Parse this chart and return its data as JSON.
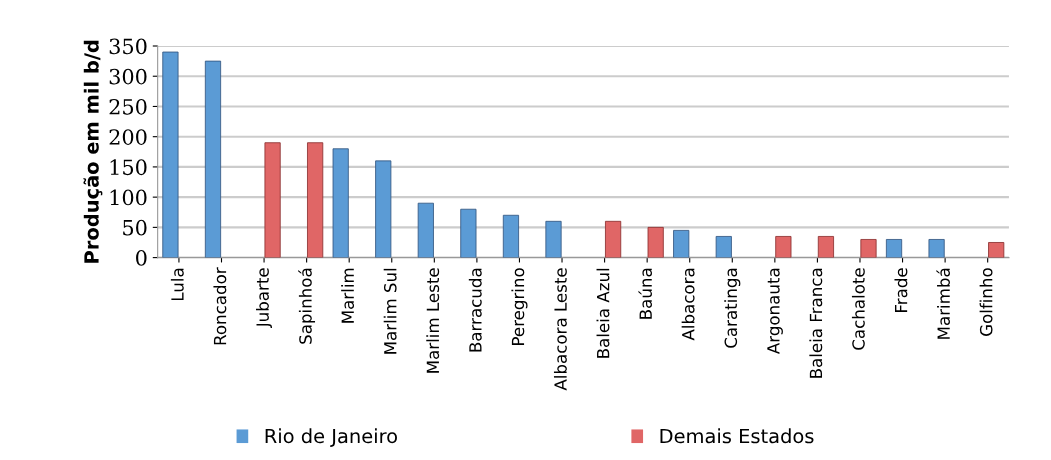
{
  "chart_data": {
    "type": "bar",
    "ylabel": "Produção em mil b/d",
    "categories": [
      "Lula",
      "Roncador",
      "Jubarte",
      "Sapinhoá",
      "Marlim",
      "Marlim Sul",
      "Marlim Leste",
      "Barracuda",
      "Peregrino",
      "Albacora Leste",
      "Baleia Azul",
      "Baúna",
      "Albacora",
      "Caratinga",
      "Argonauta",
      "Baleia Franca",
      "Cachalote",
      "Frade",
      "Marimbá",
      "Golfinho"
    ],
    "series": [
      {
        "name": "Rio de Janeiro",
        "color": "#5b9bd5",
        "values": [
          340,
          325,
          null,
          null,
          180,
          160,
          90,
          80,
          70,
          60,
          null,
          null,
          45,
          35,
          null,
          null,
          null,
          30,
          30,
          null
        ]
      },
      {
        "name": "Demais Estados",
        "color": "#e06666",
        "values": [
          null,
          null,
          190,
          190,
          null,
          null,
          null,
          null,
          null,
          null,
          60,
          50,
          null,
          null,
          35,
          35,
          30,
          null,
          null,
          25
        ]
      }
    ],
    "ylim": [
      0,
      350
    ],
    "yticks": [
      0,
      50,
      100,
      150,
      200,
      250,
      300,
      350
    ],
    "grid": "y",
    "legend": "bottom"
  }
}
